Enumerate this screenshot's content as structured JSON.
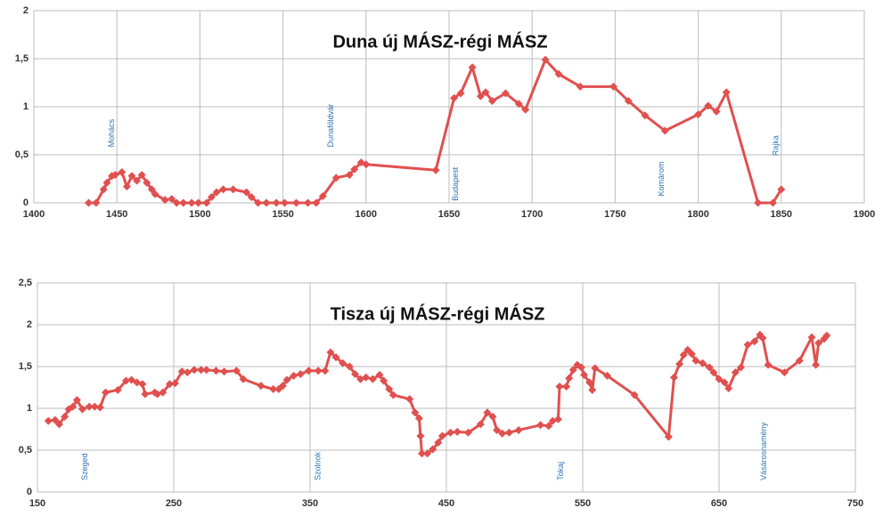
{
  "chart_data": [
    {
      "type": "line",
      "title": "Duna új MÁSZ-régi MÁSZ",
      "color": "#e0504f",
      "grid": true,
      "xlim": [
        1400,
        1900
      ],
      "xticks": [
        1400,
        1450,
        1500,
        1550,
        1600,
        1650,
        1700,
        1750,
        1800,
        1850,
        1900
      ],
      "ylim": [
        0,
        2
      ],
      "yticks": [
        0,
        {
          "value": 0.5,
          "label": "0,5"
        },
        1,
        {
          "value": 1.5,
          "label": "1,5"
        },
        2
      ],
      "x": [
        1433,
        1437.5,
        1442,
        1444,
        1447,
        1449,
        1453,
        1456,
        1459,
        1462,
        1465,
        1468,
        1471,
        1473,
        1479,
        1483,
        1486,
        1490,
        1495,
        1499,
        1504,
        1507,
        1510,
        1514,
        1520,
        1528,
        1531,
        1535,
        1540,
        1546,
        1551,
        1558,
        1565,
        1570,
        1574,
        1582,
        1590,
        1593,
        1597,
        1600,
        1642,
        1653,
        1657,
        1664,
        1669,
        1672,
        1676,
        1684,
        1692,
        1696,
        1708,
        1716,
        1729,
        1749,
        1758,
        1768,
        1780,
        1800,
        1806,
        1811,
        1817,
        1836,
        1845,
        1850
      ],
      "values": [
        0,
        0,
        0.14,
        0.21,
        0.28,
        0.29,
        0.32,
        0.17,
        0.28,
        0.23,
        0.29,
        0.21,
        0.14,
        0.09,
        0.03,
        0.04,
        0,
        0,
        0,
        0,
        0,
        0.06,
        0.11,
        0.14,
        0.14,
        0.11,
        0.06,
        0,
        0,
        0,
        0,
        0,
        0,
        0,
        0.07,
        0.26,
        0.29,
        0.35,
        0.42,
        0.4,
        0.34,
        1.09,
        1.14,
        1.41,
        1.11,
        1.15,
        1.06,
        1.14,
        1.03,
        0.97,
        1.49,
        1.34,
        1.21,
        1.21,
        1.06,
        0.91,
        0.75,
        0.92,
        1.01,
        0.95,
        1.15,
        0,
        0,
        0.14
      ],
      "annotations": [
        {
          "text": "Mohács",
          "x": 1447,
          "y": 0.58
        },
        {
          "text": "Dunaföldvár",
          "x": 1579,
          "y": 0.58
        },
        {
          "text": "Budapest",
          "x": 1654,
          "y": 0.02
        },
        {
          "text": "Komárom",
          "x": 1778,
          "y": 0.07
        },
        {
          "text": "Rajka",
          "x": 1847,
          "y": 0.49
        }
      ]
    },
    {
      "type": "line",
      "title": "Tisza új MÁSZ-régi MÁSZ",
      "color": "#e0504f",
      "grid": true,
      "xlim": [
        150,
        750
      ],
      "xticks": [
        150,
        250,
        350,
        450,
        550,
        650,
        750
      ],
      "ylim": [
        0,
        2.5
      ],
      "yticks": [
        0,
        {
          "value": 0.5,
          "label": "0,5"
        },
        1,
        {
          "value": 1.5,
          "label": "1,5"
        },
        2,
        {
          "value": 2.5,
          "label": "2,5"
        }
      ],
      "x": [
        158,
        163,
        166,
        170,
        173,
        176,
        179,
        183,
        188,
        192,
        196,
        200,
        209,
        215,
        219,
        223,
        227,
        229,
        236,
        238,
        242,
        247,
        251,
        256,
        260,
        265,
        270,
        274,
        281,
        287,
        296,
        301,
        314,
        323,
        327,
        330,
        333,
        338,
        343,
        349,
        356,
        361,
        365,
        369,
        374,
        379,
        383,
        387,
        391,
        396,
        401,
        404,
        408,
        411,
        423,
        427,
        430,
        431,
        432,
        436,
        440,
        444,
        447,
        453,
        458,
        466,
        475,
        480,
        484,
        487,
        491,
        496,
        503,
        519,
        525,
        528,
        532,
        533,
        538,
        540,
        543,
        546,
        549,
        551,
        555,
        557,
        559,
        568,
        588,
        613,
        617,
        621,
        624,
        627,
        630,
        633,
        638,
        643,
        646,
        650,
        654,
        657,
        662,
        666,
        671,
        676,
        680,
        682,
        686,
        698,
        709,
        718,
        721,
        723,
        727,
        729
      ],
      "values": [
        0.85,
        0.86,
        0.81,
        0.9,
        0.99,
        1.02,
        1.1,
        0.99,
        1.02,
        1.02,
        1.01,
        1.19,
        1.22,
        1.33,
        1.34,
        1.31,
        1.29,
        1.17,
        1.19,
        1.17,
        1.19,
        1.29,
        1.3,
        1.44,
        1.43,
        1.46,
        1.46,
        1.46,
        1.45,
        1.44,
        1.45,
        1.35,
        1.27,
        1.23,
        1.23,
        1.27,
        1.34,
        1.39,
        1.41,
        1.45,
        1.45,
        1.45,
        1.67,
        1.61,
        1.54,
        1.5,
        1.41,
        1.35,
        1.37,
        1.35,
        1.4,
        1.33,
        1.23,
        1.16,
        1.11,
        0.95,
        0.88,
        0.67,
        0.46,
        0.46,
        0.51,
        0.59,
        0.67,
        0.71,
        0.72,
        0.71,
        0.81,
        0.95,
        0.9,
        0.74,
        0.7,
        0.71,
        0.74,
        0.8,
        0.79,
        0.85,
        0.87,
        1.26,
        1.26,
        1.36,
        1.46,
        1.52,
        1.49,
        1.4,
        1.31,
        1.22,
        1.48,
        1.39,
        1.16,
        0.66,
        1.37,
        1.53,
        1.64,
        1.7,
        1.65,
        1.57,
        1.54,
        1.49,
        1.43,
        1.35,
        1.31,
        1.24,
        1.43,
        1.49,
        1.76,
        1.8,
        1.88,
        1.84,
        1.52,
        1.43,
        1.57,
        1.85,
        1.52,
        1.78,
        1.83,
        1.87
      ],
      "annotations": [
        {
          "text": "Szeged",
          "x": 185,
          "y": 0.14
        },
        {
          "text": "Szolnok",
          "x": 356,
          "y": 0.14
        },
        {
          "text": "Tokaj",
          "x": 534,
          "y": 0.14
        },
        {
          "text": "Vásárosnamény",
          "x": 683,
          "y": 0.14
        }
      ]
    }
  ]
}
